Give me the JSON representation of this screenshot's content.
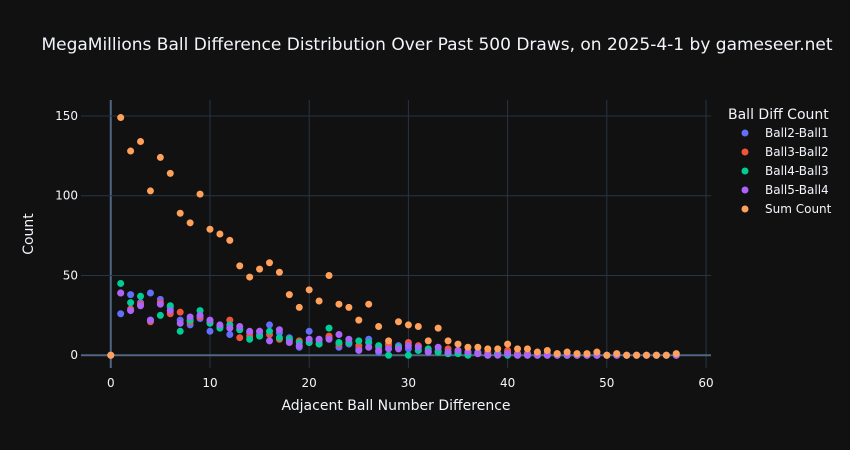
{
  "chart_data": {
    "type": "scatter",
    "title": "MegaMillions Ball Difference Distribution Over Past 500 Draws, on 2025-4-1 by gameseer.net",
    "xlabel": "Adjacent Ball Number Difference",
    "ylabel": "Count",
    "xlim": [
      -3,
      60.5
    ],
    "ylim": [
      -8,
      160
    ],
    "xticks": [
      0,
      10,
      20,
      30,
      40,
      50,
      60
    ],
    "yticks": [
      0,
      50,
      100,
      150
    ],
    "grid": true,
    "legend_title": "Ball Diff Count",
    "legend_position": "right",
    "series": [
      {
        "name": "Ball2-Ball1",
        "color": "#636efa",
        "x": [
          0,
          1,
          2,
          3,
          4,
          5,
          6,
          7,
          8,
          9,
          10,
          11,
          12,
          13,
          14,
          15,
          16,
          17,
          18,
          19,
          20,
          21,
          22,
          23,
          24,
          25,
          26,
          27,
          28,
          29,
          30,
          31,
          32,
          33,
          34,
          35,
          36,
          37,
          38,
          39,
          40,
          41,
          42,
          43,
          44,
          45,
          46,
          47,
          48,
          49,
          50,
          51,
          52,
          53,
          54,
          55,
          56,
          57
        ],
        "y": [
          0,
          26,
          38,
          33,
          39,
          35,
          30,
          22,
          19,
          23,
          15,
          18,
          13,
          16,
          14,
          13,
          19,
          14,
          11,
          5,
          15,
          9,
          11,
          5,
          7,
          4,
          10,
          2,
          6,
          6,
          4,
          3,
          2,
          3,
          1,
          2,
          1,
          2,
          1,
          1,
          2,
          1,
          1,
          1,
          0,
          0,
          0,
          0,
          0,
          0,
          0,
          0,
          0,
          0,
          0,
          0,
          0,
          0
        ]
      },
      {
        "name": "Ball3-Ball2",
        "color": "#ef553b",
        "x": [
          0,
          1,
          2,
          3,
          4,
          5,
          6,
          7,
          8,
          9,
          10,
          11,
          12,
          13,
          14,
          15,
          16,
          17,
          18,
          19,
          20,
          21,
          22,
          23,
          24,
          25,
          26,
          27,
          28,
          29,
          30,
          31,
          32,
          33,
          34,
          35,
          36,
          37,
          38,
          39,
          40,
          41,
          42,
          43,
          44,
          45,
          46,
          47,
          48,
          49,
          50,
          51,
          52,
          53,
          54,
          55,
          56,
          57
        ],
        "y": [
          0,
          39,
          29,
          32,
          21,
          33,
          26,
          27,
          21,
          24,
          21,
          18,
          22,
          11,
          12,
          15,
          13,
          10,
          9,
          9,
          8,
          7,
          12,
          7,
          8,
          6,
          8,
          5,
          7,
          5,
          8,
          6,
          3,
          2,
          4,
          3,
          2,
          1,
          2,
          1,
          3,
          1,
          1,
          0,
          1,
          1,
          0,
          0,
          0,
          0,
          0,
          0,
          0,
          0,
          0,
          0,
          0,
          0
        ]
      },
      {
        "name": "Ball4-Ball3",
        "color": "#00cc96",
        "x": [
          0,
          1,
          2,
          3,
          4,
          5,
          6,
          7,
          8,
          9,
          10,
          11,
          12,
          13,
          14,
          15,
          16,
          17,
          18,
          19,
          20,
          21,
          22,
          23,
          24,
          25,
          26,
          27,
          28,
          29,
          30,
          31,
          32,
          33,
          34,
          35,
          36,
          37,
          38,
          39,
          40,
          41,
          42,
          43,
          44,
          45,
          46,
          47,
          48,
          49,
          50,
          51,
          52,
          53,
          54,
          55,
          56,
          57
        ],
        "y": [
          0,
          45,
          33,
          37,
          22,
          25,
          31,
          15,
          22,
          28,
          20,
          17,
          19,
          16,
          10,
          12,
          15,
          11,
          10,
          8,
          8,
          7,
          17,
          8,
          8,
          9,
          8,
          6,
          0,
          5,
          0,
          3,
          4,
          2,
          1,
          1,
          0,
          1,
          0,
          1,
          0,
          0,
          0,
          0,
          0,
          0,
          0,
          0,
          0,
          0,
          0,
          0,
          0,
          0,
          0,
          0,
          0,
          0
        ]
      },
      {
        "name": "Ball5-Ball4",
        "color": "#ab63fa",
        "x": [
          0,
          1,
          2,
          3,
          4,
          5,
          6,
          7,
          8,
          9,
          10,
          11,
          12,
          13,
          14,
          15,
          16,
          17,
          18,
          19,
          20,
          21,
          22,
          23,
          24,
          25,
          26,
          27,
          28,
          29,
          30,
          31,
          32,
          33,
          34,
          35,
          36,
          37,
          38,
          39,
          40,
          41,
          42,
          43,
          44,
          45,
          46,
          47,
          48,
          49,
          50,
          51,
          52,
          53,
          54,
          55,
          56,
          57
        ],
        "y": [
          0,
          39,
          28,
          31,
          22,
          32,
          28,
          20,
          24,
          25,
          22,
          19,
          17,
          18,
          15,
          15,
          9,
          16,
          8,
          6,
          10,
          10,
          10,
          13,
          10,
          3,
          5,
          3,
          4,
          4,
          6,
          5,
          2,
          5,
          2,
          3,
          2,
          1,
          0,
          0,
          1,
          0,
          0,
          0,
          0,
          0,
          0,
          0,
          0,
          0,
          0,
          0,
          0,
          0,
          0,
          0,
          0,
          0
        ]
      },
      {
        "name": "Sum Count",
        "color": "#ffa15a",
        "x": [
          0,
          1,
          2,
          3,
          4,
          5,
          6,
          7,
          8,
          9,
          10,
          11,
          12,
          13,
          14,
          15,
          16,
          17,
          18,
          19,
          20,
          21,
          22,
          23,
          24,
          25,
          26,
          27,
          28,
          29,
          30,
          31,
          32,
          33,
          34,
          35,
          36,
          37,
          38,
          39,
          40,
          41,
          42,
          43,
          44,
          45,
          46,
          47,
          48,
          49,
          50,
          51,
          52,
          53,
          54,
          55,
          56,
          57
        ],
        "y": [
          0,
          149,
          128,
          134,
          103,
          124,
          114,
          89,
          83,
          101,
          79,
          76,
          72,
          56,
          49,
          54,
          58,
          52,
          38,
          30,
          41,
          34,
          50,
          32,
          30,
          22,
          32,
          18,
          9,
          21,
          19,
          18,
          9,
          17,
          9,
          7,
          5,
          5,
          4,
          4,
          7,
          4,
          4,
          2,
          3,
          1,
          2,
          1,
          1,
          2,
          0,
          1,
          0,
          0,
          0,
          0,
          0,
          1
        ]
      }
    ]
  }
}
